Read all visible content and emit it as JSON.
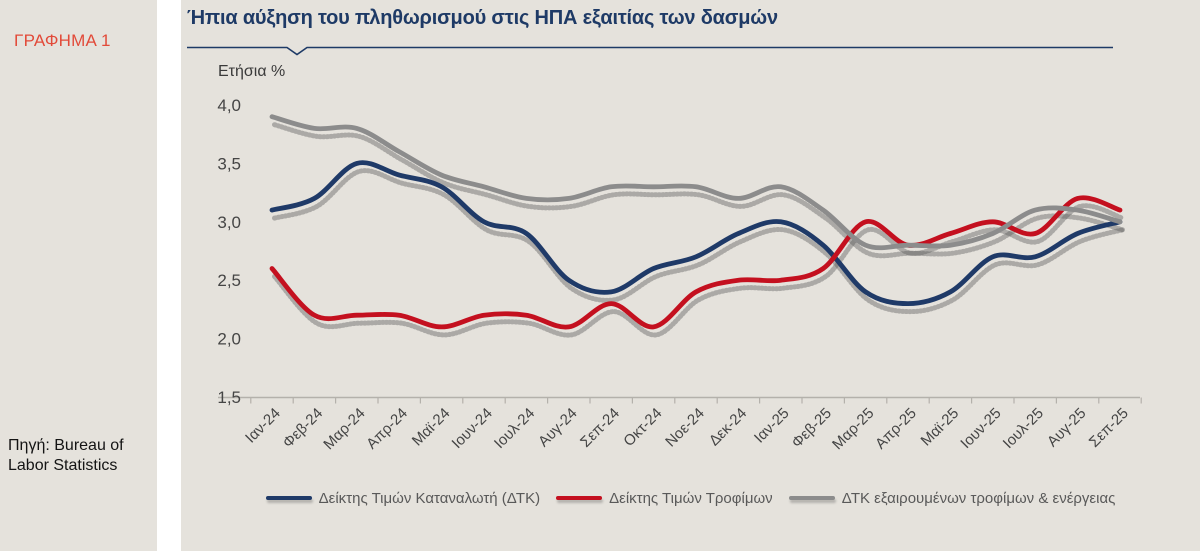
{
  "page": {
    "figure_label": "ΓΡΑΦΗΜΑ 1",
    "source_note": "Πηγή: Bureau of Labor Statistics"
  },
  "colors": {
    "background": "#e5e2dc",
    "title": "#1e3a66",
    "figure_label": "#e24a39",
    "axis": "#b4b1ab",
    "tick_text": "#454545",
    "legend_text": "#595959"
  },
  "chart_data": {
    "type": "line",
    "title": "Ήπια αύξηση του πληθωρισμού στις ΗΠΑ εξαιτίας των δασμών",
    "ylabel": "Ετήσια %",
    "xlabel": "",
    "ylim": [
      1.5,
      4.0
    ],
    "ytick_values": [
      4.0,
      3.5,
      3.0,
      2.5,
      2.0,
      1.5
    ],
    "ytick_labels": [
      "4,0",
      "3,5",
      "3,0",
      "2,5",
      "2,0",
      "1,5"
    ],
    "grid": false,
    "legend_position": "bottom",
    "categories": [
      "Ιαν-24",
      "Φεβ-24",
      "Μαρ-24",
      "Απρ-24",
      "Μαϊ-24",
      "Ιουν-24",
      "Ιουλ-24",
      "Αυγ-24",
      "Σεπ-24",
      "Οκτ-24",
      "Νοε-24",
      "Δεκ-24",
      "Ιαν-25",
      "Φεβ-25",
      "Μαρ-25",
      "Απρ-25",
      "Μαϊ-25",
      "Ιουν-25",
      "Ιουλ-25",
      "Αυγ-25",
      "Σεπ-25"
    ],
    "series": [
      {
        "name": "Δείκτης Τιμών Καταναλωτή (ΔΤΚ)",
        "color": "#1f3a68",
        "values": [
          3.1,
          3.2,
          3.5,
          3.4,
          3.3,
          3.0,
          2.9,
          2.5,
          2.4,
          2.6,
          2.7,
          2.9,
          3.0,
          2.8,
          2.4,
          2.3,
          2.4,
          2.7,
          2.7,
          2.9,
          3.0
        ]
      },
      {
        "name": "Δείκτης Τιμών Τροφίμων",
        "color": "#c4101f",
        "values": [
          2.6,
          2.2,
          2.2,
          2.2,
          2.1,
          2.2,
          2.2,
          2.1,
          2.3,
          2.1,
          2.4,
          2.5,
          2.5,
          2.6,
          3.0,
          2.8,
          2.9,
          3.0,
          2.9,
          3.2,
          3.1
        ]
      },
      {
        "name": "ΔΤΚ εξαιρουμένων τροφίμων & ενέργειας",
        "color": "#8c8c8c",
        "values": [
          3.9,
          3.8,
          3.8,
          3.6,
          3.4,
          3.3,
          3.2,
          3.2,
          3.3,
          3.3,
          3.3,
          3.2,
          3.3,
          3.1,
          2.8,
          2.8,
          2.8,
          2.9,
          3.1,
          3.1,
          3.0
        ]
      }
    ]
  }
}
